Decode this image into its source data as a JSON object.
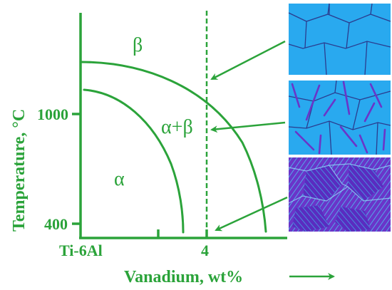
{
  "axes": {
    "ylabel": "Temperature, °C",
    "xlabel": "Vanadium, wt%",
    "ytick_1000": "1000",
    "ytick_400": "400",
    "xtick_origin": "Ti-6Al",
    "xtick_4": "4",
    "xlabel_arrow": "→"
  },
  "regions": {
    "beta": "β",
    "alpha_beta": "α+β",
    "alpha": "α"
  },
  "colors": {
    "line": "#2ba33a",
    "grain_light": "#29a9ef",
    "grain_boundary": "#2b3c8f",
    "alpha_phase": "#6a35c9"
  },
  "micrographs": [
    {
      "name": "beta-grains",
      "phase": "β"
    },
    {
      "name": "alpha-plates-in-beta",
      "phase": "α+β"
    },
    {
      "name": "basketweave-alpha",
      "phase": "α"
    }
  ]
}
